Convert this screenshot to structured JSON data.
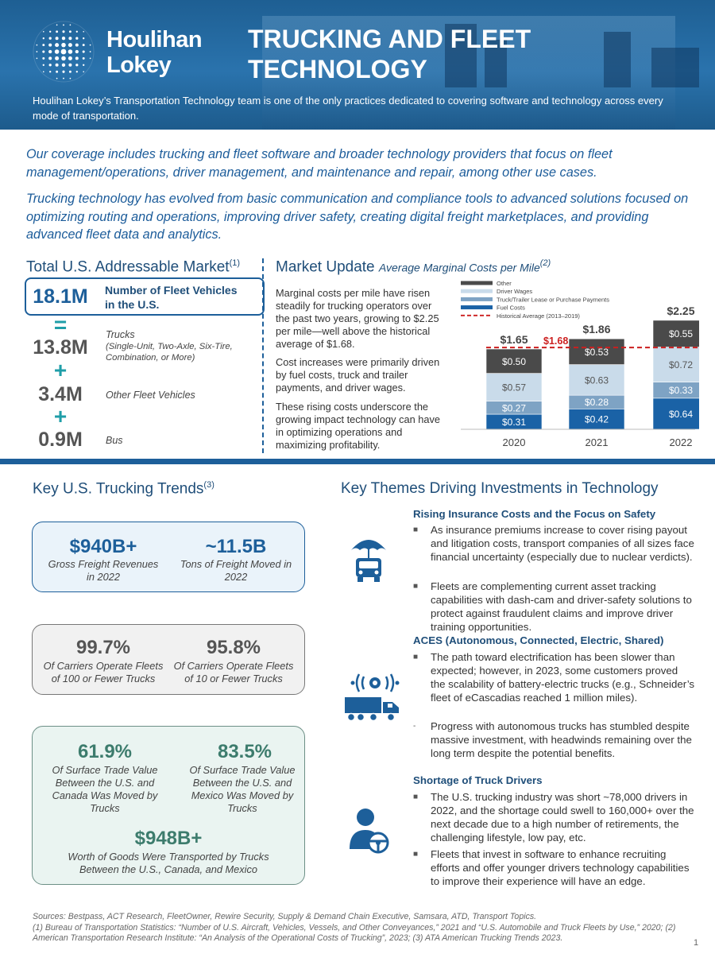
{
  "header": {
    "logo_line1": "Houlihan",
    "logo_line2": "Lokey",
    "title_line1": "TRUCKING AND FLEET",
    "title_line2": "TECHNOLOGY",
    "subtitle": "Houlihan Lokey’s Transportation Technology team is one of the only practices dedicated to covering software and technology across every mode of transportation."
  },
  "intro": {
    "p1": "Our coverage includes trucking and fleet software and broader technology providers that focus on fleet management/operations, driver management, and maintenance and repair, among other use cases.",
    "p2": "Trucking technology has evolved from basic communication and compliance tools to advanced solutions focused on optimizing routing and operations, improving driver safety, creating digital freight marketplaces, and providing advanced fleet data and analytics."
  },
  "tam": {
    "heading": "Total U.S. Addressable Market",
    "heading_sup": "(1)",
    "total_value": "18.1M",
    "total_label": "Number of Fleet Vehicles in the U.S.",
    "op_equals": "=",
    "op_plus": "+",
    "items": [
      {
        "value": "13.8M",
        "label": "Trucks",
        "sub": "(Single-Unit, Two-Axle, Six-Tire, Combination, or More)"
      },
      {
        "value": "3.4M",
        "label": "Other Fleet Vehicles"
      },
      {
        "value": "0.9M",
        "label": "Bus"
      }
    ]
  },
  "market_update": {
    "heading": "Market Update",
    "heading_italic": "Average Marginal Costs per Mile",
    "heading_sup": "(2)",
    "p1": "Marginal costs per mile have risen steadily for trucking operators over the past two years, growing to $2.25 per mile—well above the historical average of $1.68.",
    "p2": "Cost increases were primarily driven by fuel costs, truck and trailer payments, and driver wages.",
    "p3": "These rising costs underscore the growing impact technology can have in optimizing operations and maximizing profitability."
  },
  "chart_data": {
    "type": "bar",
    "stacked": true,
    "categories": [
      "2020",
      "2021",
      "2022"
    ],
    "series": [
      {
        "name": "Fuel Costs",
        "color": "#1a62a6",
        "values": [
          0.31,
          0.42,
          0.64
        ],
        "labels": [
          "$0.31",
          "$0.42",
          "$0.64"
        ]
      },
      {
        "name": "Truck/Trailer Lease or Purchase Payments",
        "color": "#7ea3c4",
        "values": [
          0.27,
          0.28,
          0.33
        ],
        "labels": [
          "$0.27",
          "$0.28",
          "$0.33"
        ]
      },
      {
        "name": "Driver Wages",
        "color": "#c9dbea",
        "values": [
          0.57,
          0.63,
          0.72
        ],
        "labels": [
          "$0.57",
          "$0.63",
          "$0.72"
        ]
      },
      {
        "name": "Other",
        "color": "#4a4a4a",
        "values": [
          0.5,
          0.53,
          0.55
        ],
        "labels": [
          "$0.50",
          "$0.53",
          "$0.55"
        ]
      }
    ],
    "totals": [
      "$1.65",
      "$1.86",
      "$2.25"
    ],
    "total_values": [
      1.65,
      1.86,
      2.25
    ],
    "reference_line": {
      "name": "Historical Average (2013–2019)",
      "value": 1.68,
      "label": "$1.68",
      "color": "#cc1f1f"
    },
    "ylim": [
      0,
      2.5
    ],
    "legend_order": [
      "Other",
      "Driver Wages",
      "Truck/Trailer Lease or Purchase Payments",
      "Fuel Costs",
      "Historical Average (2013–2019)"
    ],
    "legend_position": "top-left"
  },
  "trends": {
    "heading": "Key U.S. Trucking Trends",
    "heading_sup": "(3)",
    "card1": [
      {
        "value": "$940B+",
        "label": "Gross Freight Revenues in 2022"
      },
      {
        "value": "~11.5B",
        "label": "Tons of Freight Moved in 2022"
      }
    ],
    "card2": [
      {
        "value": "99.7%",
        "label": "Of Carriers Operate Fleets of 100 or Fewer Trucks"
      },
      {
        "value": "95.8%",
        "label": "Of Carriers Operate Fleets of 10 or Fewer Trucks"
      }
    ],
    "card3": [
      {
        "value": "61.9%",
        "label": "Of Surface Trade Value Between the U.S. and Canada Was Moved by Trucks"
      },
      {
        "value": "83.5%",
        "label": "Of Surface Trade Value Between the U.S. and Mexico Was Moved by Trucks"
      }
    ],
    "card3_total": {
      "value": "$948B+",
      "label": "Worth of Goods Were Transported by Trucks Between the U.S., Canada, and Mexico"
    }
  },
  "themes": {
    "heading": "Key Themes Driving Investments in Technology",
    "sections": [
      {
        "title": "Rising Insurance Costs and the Focus on Safety",
        "icon": "umbrella-truck-icon",
        "bullets": [
          "As insurance premiums increase to cover rising payout and litigation costs, transport companies of all sizes face financial uncertainty (especially due to nuclear verdicts).",
          "Fleets are complementing current asset tracking capabilities with dash-cam and driver-safety solutions to protect against fraudulent claims and improve driver training opportunities."
        ]
      },
      {
        "title": "ACES (Autonomous, Connected, Electric, Shared)",
        "icon": "connected-truck-icon",
        "bullets": [
          "The path toward electrification has been slower than expected; however, in 2023, some customers proved the scalability of battery-electric trucks (e.g., Schneider’s fleet of eCascadias reached 1 million miles).",
          "Progress with autonomous trucks has stumbled despite massive investment, with headwinds remaining over the long term despite the potential benefits."
        ]
      },
      {
        "title": "Shortage of Truck Drivers",
        "icon": "driver-icon",
        "bullets": [
          "The U.S. trucking industry was short ~78,000 drivers in 2022, and the shortage could swell to 160,000+ over the next decade due to a high number of retirements, the challenging lifestyle, low pay, etc.",
          "Fleets that invest in software to enhance recruiting efforts and offer younger drivers technology capabilities to improve their experience will have an edge."
        ]
      }
    ]
  },
  "footer": {
    "sources": "Sources: Bestpass, ACT Research, FleetOwner, Rewire Security, Supply & Demand Chain Executive, Samsara, ATD, Transport Topics.",
    "notes": "(1) Bureau of Transportation Statistics: “Number of U.S. Aircraft, Vehicles, Vessels, and Other Conveyances,” 2021 and “U.S. Automobile and Truck Fleets by Use,” 2020; (2) American Transportation Research Institute: “An Analysis of the Operational Costs of Trucking”, 2023; (3) ATA American Trucking Trends 2023.",
    "page": "1"
  },
  "colors": {
    "brand": "#1d5f9a",
    "heading": "#1f4e79",
    "teal": "#1f9ea8",
    "red": "#cc1f1f"
  }
}
